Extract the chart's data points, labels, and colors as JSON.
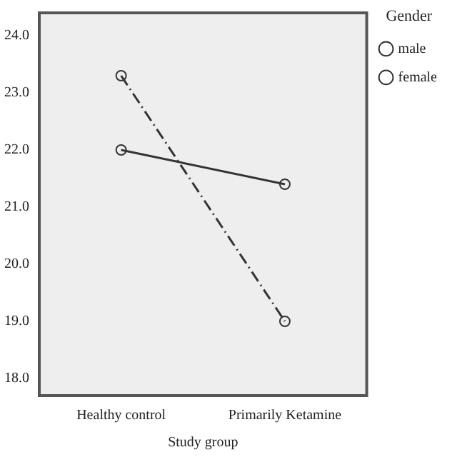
{
  "chart_data": {
    "type": "line",
    "xlabel": "Study group",
    "legend_title": "Gender",
    "categories": [
      "Healthy control",
      "Primarily Ketamine"
    ],
    "series": [
      {
        "name": "male",
        "color": "#333333",
        "values": [
          22.0,
          21.4
        ],
        "line_style": "solid"
      },
      {
        "name": "female",
        "color": "#333333",
        "values": [
          23.3,
          19.0
        ],
        "line_style": "dashed"
      }
    ],
    "ylim": [
      17.7,
      24.4
    ],
    "yticks": [
      {
        "value": 18,
        "label": "18.0"
      },
      {
        "value": 19,
        "label": "19.0"
      },
      {
        "value": 20,
        "label": "20.0"
      },
      {
        "value": 21,
        "label": "21.0"
      },
      {
        "value": 22,
        "label": "22.0"
      },
      {
        "value": 23,
        "label": "23.0"
      },
      {
        "value": 24,
        "label": "24.0"
      }
    ],
    "grid": false,
    "legend": "top right",
    "marker": "circle"
  }
}
